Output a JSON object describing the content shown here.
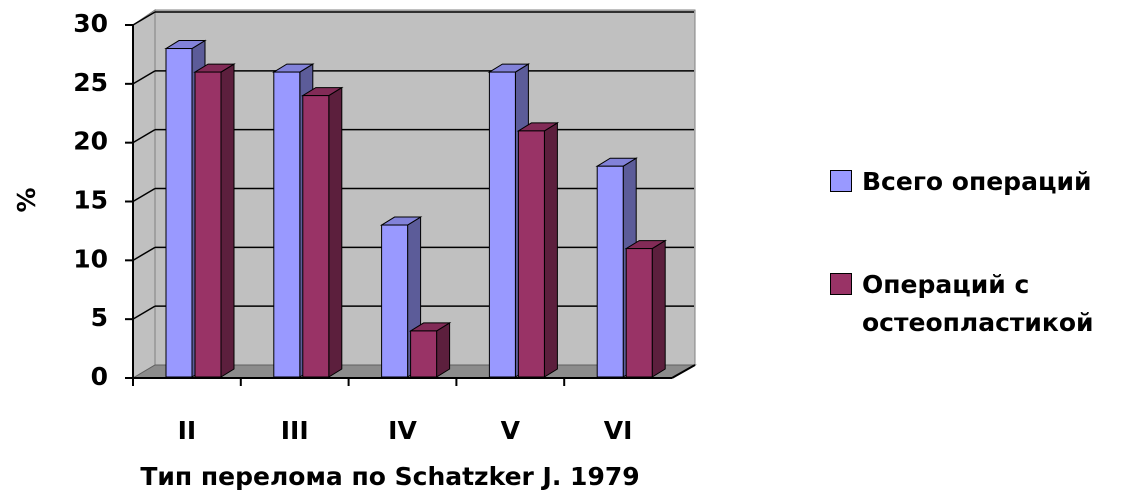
{
  "chart_data": {
    "type": "bar3d",
    "categories": [
      "II",
      "III",
      "IV",
      "V",
      "VI"
    ],
    "series": [
      {
        "name": "Всего операций",
        "color": "#9999ff",
        "values": [
          28,
          26,
          13,
          26,
          18
        ]
      },
      {
        "name": "Операций с остеопластикой",
        "color": "#993366",
        "values": [
          26,
          24,
          4,
          21,
          11
        ]
      }
    ],
    "y_label": "%",
    "x_label": "Тип перелома по Schatzker J. 1979",
    "ylim": [
      0,
      30
    ],
    "yticks": [
      0,
      5,
      10,
      15,
      20,
      25,
      30
    ],
    "grid": true,
    "legend": "right"
  }
}
